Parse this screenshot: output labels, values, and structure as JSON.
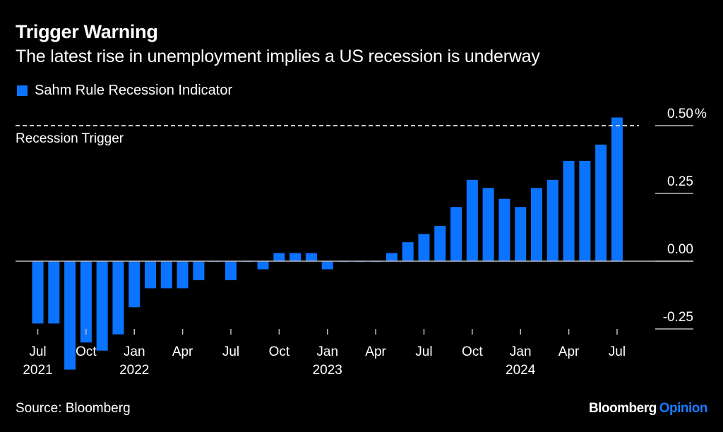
{
  "colors": {
    "bar": "#0a73ff",
    "background": "#000000",
    "text": "#ffffff",
    "axis": "#bdbdbd",
    "brand_accent": "#1a7bff"
  },
  "chart_data": {
    "type": "bar",
    "title": "Trigger Warning",
    "subtitle": "The latest rise in unemployment implies a US recession is underway",
    "legend": [
      {
        "label": "Sahm Rule Recession Indicator",
        "color": "#0a73ff"
      }
    ],
    "legend_position": "top-left",
    "xlabel": "",
    "ylabel": "",
    "y_unit": "%",
    "ylim": [
      -0.4,
      0.53
    ],
    "y_ticks": [
      {
        "value": 0.5,
        "label": "0.50%"
      },
      {
        "value": 0.25,
        "label": "0.25"
      },
      {
        "value": 0.0,
        "label": "0.00"
      },
      {
        "value": -0.25,
        "label": "-0.25"
      }
    ],
    "y_axis_position": "right",
    "grid": false,
    "reference_line": {
      "value": 0.5,
      "label": "Recession Trigger",
      "style": "dashed"
    },
    "categories": [
      "2021-07",
      "2021-08",
      "2021-09",
      "2021-10",
      "2021-11",
      "2021-12",
      "2022-01",
      "2022-02",
      "2022-03",
      "2022-04",
      "2022-05",
      "2022-06",
      "2022-07",
      "2022-08",
      "2022-09",
      "2022-10",
      "2022-11",
      "2022-12",
      "2023-01",
      "2023-02",
      "2023-03",
      "2023-04",
      "2023-05",
      "2023-06",
      "2023-07",
      "2023-08",
      "2023-09",
      "2023-10",
      "2023-11",
      "2023-12",
      "2024-01",
      "2024-02",
      "2024-03",
      "2024-04",
      "2024-05",
      "2024-06",
      "2024-07"
    ],
    "series": [
      {
        "name": "Sahm Rule Recession Indicator",
        "values": [
          -0.23,
          -0.23,
          -0.4,
          -0.3,
          -0.33,
          -0.27,
          -0.17,
          -0.1,
          -0.1,
          -0.1,
          -0.07,
          0.0,
          -0.07,
          0.0,
          -0.03,
          0.03,
          0.03,
          0.03,
          -0.03,
          0.0,
          0.0,
          0.0,
          0.03,
          0.07,
          0.1,
          0.13,
          0.2,
          0.3,
          0.27,
          0.23,
          0.2,
          0.27,
          0.3,
          0.37,
          0.37,
          0.43,
          0.53
        ]
      }
    ],
    "x_ticks": [
      {
        "index": 0,
        "label": "Jul",
        "year": "2021"
      },
      {
        "index": 3,
        "label": "Oct",
        "year": ""
      },
      {
        "index": 6,
        "label": "Jan",
        "year": "2022"
      },
      {
        "index": 9,
        "label": "Apr",
        "year": ""
      },
      {
        "index": 12,
        "label": "Jul",
        "year": ""
      },
      {
        "index": 15,
        "label": "Oct",
        "year": ""
      },
      {
        "index": 18,
        "label": "Jan",
        "year": "2023"
      },
      {
        "index": 21,
        "label": "Apr",
        "year": ""
      },
      {
        "index": 24,
        "label": "Jul",
        "year": ""
      },
      {
        "index": 27,
        "label": "Oct",
        "year": ""
      },
      {
        "index": 30,
        "label": "Jan",
        "year": "2024"
      },
      {
        "index": 33,
        "label": "Apr",
        "year": ""
      },
      {
        "index": 36,
        "label": "Jul",
        "year": ""
      }
    ]
  },
  "footer": {
    "source": "Source: Bloomberg",
    "brand_primary": "Bloomberg",
    "brand_secondary": "Opinion"
  }
}
